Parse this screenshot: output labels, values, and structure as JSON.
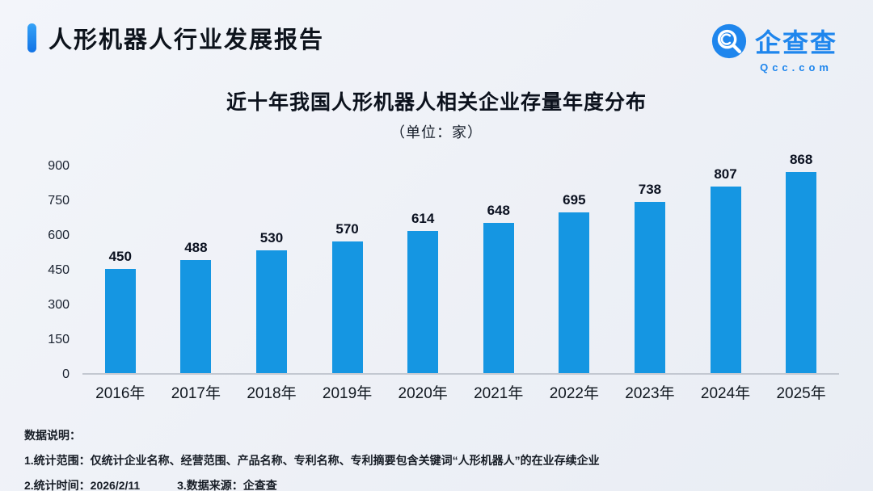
{
  "header": {
    "title": "人形机器人行业发展报告",
    "logo_text": "企查查",
    "logo_sub": "Qcc.com"
  },
  "chart": {
    "title": "近十年我国人形机器人相关企业存量年度分布",
    "subtitle": "（单位：家）"
  },
  "chart_data": {
    "type": "bar",
    "title": "近十年我国人形机器人相关企业存量年度分布",
    "unit": "家",
    "categories": [
      "2016年",
      "2017年",
      "2018年",
      "2019年",
      "2020年",
      "2021年",
      "2022年",
      "2023年",
      "2024年",
      "2025年"
    ],
    "values": [
      450,
      488,
      530,
      570,
      614,
      648,
      695,
      738,
      807,
      868
    ],
    "xlabel": "",
    "ylabel": "",
    "ylim": [
      0,
      900
    ],
    "yticks": [
      0,
      150,
      300,
      450,
      600,
      750,
      900
    ],
    "bar_color": "#1596e2",
    "grid": false,
    "legend": false,
    "value_labels": true
  },
  "footer": {
    "heading": "数据说明：",
    "line1": "1.统计范围：仅统计企业名称、经营范围、产品名称、专利名称、专利摘要包含关键词“人形机器人”的在业存续企业",
    "line2": "2.统计时间：2026/2/11",
    "line3": "3.数据来源：企查查"
  },
  "colors": {
    "bar": "#1596e2",
    "accent": "#1273e6",
    "logo_blue": "#1f86ed",
    "axis_line": "#c3c8d1"
  }
}
